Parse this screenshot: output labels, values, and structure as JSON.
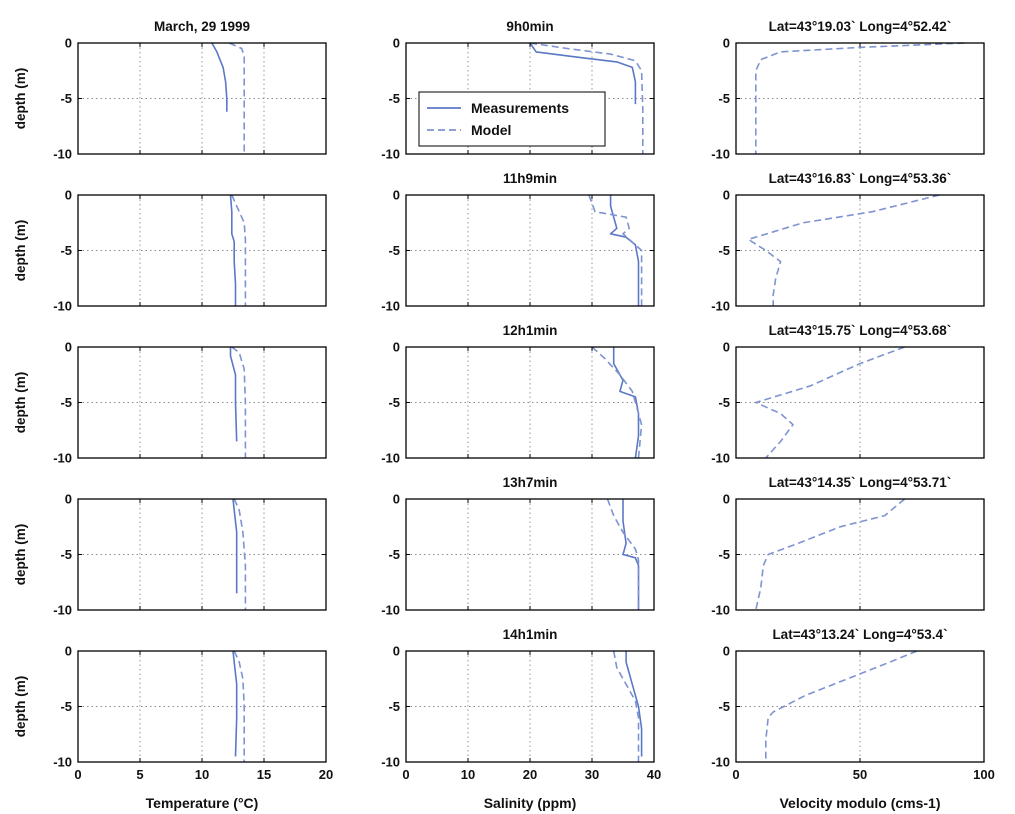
{
  "figure": {
    "ylabel": "depth (m)",
    "xlabels": [
      "Temperature (°C)",
      "Salinity (ppm)",
      "Velocity modulo (cms-1)"
    ],
    "legend": {
      "entries": [
        "Measurements",
        "Model"
      ],
      "placement": "inside first salinity panel"
    },
    "colors": {
      "measurements": "#5b78c6",
      "model": "#7e93d1",
      "frame": "#000000",
      "grid": "#8c8c8c"
    }
  },
  "chart_data": [
    {
      "type": "line",
      "panel": "temperature-row1",
      "title": "March, 29 1999",
      "xlabel": "",
      "ylabel": "depth (m)",
      "xlim": [
        0,
        20
      ],
      "ylim": [
        -10,
        0
      ],
      "grid": true,
      "x_ticks": [
        "0",
        "5",
        "10",
        "15",
        "20"
      ],
      "y_ticks": [
        "0",
        "-5",
        "-10"
      ],
      "series": [
        {
          "name": "Measurements",
          "style": "solid",
          "x": [
            10.8,
            11.2,
            11.7,
            11.9,
            12.0,
            12.0
          ],
          "y": [
            0,
            -0.8,
            -2.2,
            -3.5,
            -5,
            -6.2
          ]
        },
        {
          "name": "Model",
          "style": "dashed",
          "x": [
            12.2,
            13.2,
            13.4,
            13.4,
            13.4,
            13.4
          ],
          "y": [
            0,
            -0.5,
            -1.2,
            -4,
            -7,
            -10
          ]
        }
      ]
    },
    {
      "type": "line",
      "panel": "salinity-row1",
      "title": "9h0min",
      "xlabel": "",
      "ylabel": "",
      "xlim": [
        0,
        40
      ],
      "ylim": [
        -10,
        0
      ],
      "grid": true,
      "x_ticks": [
        "0",
        "10",
        "20",
        "30",
        "40"
      ],
      "y_ticks": [
        "0",
        "-5",
        "-10"
      ],
      "series": [
        {
          "name": "Measurements",
          "style": "solid",
          "x": [
            20.0,
            21.0,
            28.0,
            34.0,
            36.5,
            37.0,
            37.0
          ],
          "y": [
            0,
            -0.8,
            -1.3,
            -1.7,
            -2.2,
            -3.5,
            -5.5
          ]
        },
        {
          "name": "Model",
          "style": "dashed",
          "x": [
            20.0,
            26.0,
            33.0,
            37.0,
            38.0,
            38.2,
            38.2
          ],
          "y": [
            0,
            -0.5,
            -1.0,
            -1.6,
            -2.5,
            -6,
            -10
          ]
        }
      ]
    },
    {
      "type": "line",
      "panel": "velocity-row1",
      "title": "Lat=43°19.03` Long=4°52.42`",
      "xlabel": "",
      "ylabel": "",
      "xlim": [
        0,
        100
      ],
      "ylim": [
        -10,
        0
      ],
      "grid": true,
      "x_ticks": [
        "0",
        "50",
        "100"
      ],
      "y_ticks": [
        "0",
        "-5",
        "-10"
      ],
      "series": [
        {
          "name": "Model",
          "style": "dashed",
          "x": [
            92,
            50,
            18,
            10,
            8,
            8,
            8,
            8
          ],
          "y": [
            0,
            -0.4,
            -0.8,
            -1.5,
            -2.5,
            -5,
            -8,
            -10
          ]
        }
      ]
    },
    {
      "type": "line",
      "panel": "temperature-row2",
      "title": "",
      "xlabel": "",
      "ylabel": "depth (m)",
      "xlim": [
        0,
        20
      ],
      "ylim": [
        -10,
        0
      ],
      "grid": true,
      "x_ticks": [
        "0",
        "5",
        "10",
        "15",
        "20"
      ],
      "y_ticks": [
        "0",
        "-5",
        "-10"
      ],
      "series": [
        {
          "name": "Measurements",
          "style": "solid",
          "x": [
            12.3,
            12.4,
            12.4,
            12.6,
            12.6,
            12.7,
            12.7
          ],
          "y": [
            0,
            -1.5,
            -3.5,
            -4.2,
            -6,
            -8,
            -10
          ]
        },
        {
          "name": "Model",
          "style": "dashed",
          "x": [
            12.4,
            12.8,
            13.4,
            13.5,
            13.5,
            13.5
          ],
          "y": [
            0,
            -1.0,
            -2.5,
            -4,
            -7,
            -10
          ]
        }
      ]
    },
    {
      "type": "line",
      "panel": "salinity-row2",
      "title": "11h9min",
      "xlabel": "",
      "ylabel": "",
      "xlim": [
        0,
        40
      ],
      "ylim": [
        -10,
        0
      ],
      "grid": true,
      "x_ticks": [
        "0",
        "10",
        "20",
        "30",
        "40"
      ],
      "y_ticks": [
        "0",
        "-5",
        "-10"
      ],
      "series": [
        {
          "name": "Measurements",
          "style": "solid",
          "x": [
            33.0,
            33.0,
            33.5,
            34.0,
            33.0,
            35.5,
            37.0,
            37.5,
            37.5
          ],
          "y": [
            0,
            -1.0,
            -2.0,
            -3.0,
            -3.5,
            -3.8,
            -4.5,
            -6,
            -10
          ]
        },
        {
          "name": "Model",
          "style": "dashed",
          "x": [
            29.5,
            30.5,
            35.5,
            36.0,
            35.0,
            37.0,
            38.0,
            38.0
          ],
          "y": [
            0,
            -1.5,
            -2.0,
            -3.0,
            -3.5,
            -4.5,
            -5,
            -10
          ]
        }
      ]
    },
    {
      "type": "line",
      "panel": "velocity-row2",
      "title": "Lat=43°16.83` Long=4°53.36`",
      "xlabel": "",
      "ylabel": "",
      "xlim": [
        0,
        100
      ],
      "ylim": [
        -10,
        0
      ],
      "grid": true,
      "x_ticks": [
        "0",
        "50",
        "100"
      ],
      "y_ticks": [
        "0",
        "-5",
        "-10"
      ],
      "series": [
        {
          "name": "Model",
          "style": "dashed",
          "x": [
            82,
            55,
            27,
            5,
            12,
            18,
            16,
            15,
            15
          ],
          "y": [
            0,
            -1.5,
            -2.5,
            -4.0,
            -5.0,
            -6.0,
            -7.5,
            -9,
            -10
          ]
        }
      ]
    },
    {
      "type": "line",
      "panel": "temperature-row3",
      "title": "",
      "xlabel": "",
      "ylabel": "depth (m)",
      "xlim": [
        0,
        20
      ],
      "ylim": [
        -10,
        0
      ],
      "grid": true,
      "x_ticks": [
        "0",
        "5",
        "10",
        "15",
        "20"
      ],
      "y_ticks": [
        "0",
        "-5",
        "-10"
      ],
      "series": [
        {
          "name": "Measurements",
          "style": "solid",
          "x": [
            12.3,
            12.3,
            12.7,
            12.7,
            12.8
          ],
          "y": [
            0,
            -0.8,
            -2.5,
            -5,
            -8.5
          ]
        },
        {
          "name": "Model",
          "style": "dashed",
          "x": [
            12.4,
            13.0,
            13.4,
            13.5,
            13.5
          ],
          "y": [
            0,
            -0.5,
            -2.0,
            -5,
            -10
          ]
        }
      ]
    },
    {
      "type": "line",
      "panel": "salinity-row3",
      "title": "12h1min",
      "xlabel": "",
      "ylabel": "",
      "xlim": [
        0,
        40
      ],
      "ylim": [
        -10,
        0
      ],
      "grid": true,
      "x_ticks": [
        "0",
        "10",
        "20",
        "30",
        "40"
      ],
      "y_ticks": [
        "0",
        "-5",
        "-10"
      ],
      "series": [
        {
          "name": "Measurements",
          "style": "solid",
          "x": [
            33.5,
            33.5,
            35.0,
            34.5,
            37.0,
            37.5,
            37.5,
            37.0
          ],
          "y": [
            0,
            -1.5,
            -3.0,
            -4.0,
            -4.5,
            -6,
            -8,
            -10
          ]
        },
        {
          "name": "Model",
          "style": "dashed",
          "x": [
            30.0,
            32.0,
            34.5,
            36.5,
            37.0,
            38.0,
            37.5
          ],
          "y": [
            0,
            -1.0,
            -2.5,
            -4.0,
            -5.0,
            -7,
            -10
          ]
        }
      ]
    },
    {
      "type": "line",
      "panel": "velocity-row3",
      "title": "Lat=43°15.75` Long=4°53.68`",
      "xlabel": "",
      "ylabel": "",
      "xlim": [
        0,
        100
      ],
      "ylim": [
        -10,
        0
      ],
      "grid": true,
      "x_ticks": [
        "0",
        "50",
        "100"
      ],
      "y_ticks": [
        "0",
        "-5",
        "-10"
      ],
      "series": [
        {
          "name": "Model",
          "style": "dashed",
          "x": [
            68,
            50,
            30,
            8,
            18,
            23,
            18,
            12
          ],
          "y": [
            0,
            -1.5,
            -3.5,
            -5.0,
            -6.0,
            -7.0,
            -8.5,
            -10
          ]
        }
      ]
    },
    {
      "type": "line",
      "panel": "temperature-row4",
      "title": "",
      "xlabel": "",
      "ylabel": "depth (m)",
      "xlim": [
        0,
        20
      ],
      "ylim": [
        -10,
        0
      ],
      "grid": true,
      "x_ticks": [
        "0",
        "5",
        "10",
        "15",
        "20"
      ],
      "y_ticks": [
        "0",
        "-5",
        "-10"
      ],
      "series": [
        {
          "name": "Measurements",
          "style": "solid",
          "x": [
            12.5,
            12.6,
            12.8,
            12.8,
            12.8
          ],
          "y": [
            0,
            -1.0,
            -3.0,
            -6,
            -8.5
          ]
        },
        {
          "name": "Model",
          "style": "dashed",
          "x": [
            12.6,
            13.0,
            13.3,
            13.5,
            13.5
          ],
          "y": [
            0,
            -1.0,
            -3.0,
            -6,
            -10
          ]
        }
      ]
    },
    {
      "type": "line",
      "panel": "salinity-row4",
      "title": "13h7min",
      "xlabel": "",
      "ylabel": "",
      "xlim": [
        0,
        40
      ],
      "ylim": [
        -10,
        0
      ],
      "grid": true,
      "x_ticks": [
        "0",
        "10",
        "20",
        "30",
        "40"
      ],
      "y_ticks": [
        "0",
        "-5",
        "-10"
      ],
      "series": [
        {
          "name": "Measurements",
          "style": "solid",
          "x": [
            35.0,
            35.0,
            35.5,
            35.0,
            37.0,
            37.5,
            37.5,
            37.5
          ],
          "y": [
            0,
            -2.0,
            -4.0,
            -5.0,
            -5.3,
            -6,
            -8,
            -10
          ]
        },
        {
          "name": "Model",
          "style": "dashed",
          "x": [
            32.5,
            33.5,
            35.0,
            37.0,
            37.5,
            37.5,
            37.5
          ],
          "y": [
            0,
            -1.5,
            -3.0,
            -4.5,
            -5.5,
            -7.5,
            -10
          ]
        }
      ]
    },
    {
      "type": "line",
      "panel": "velocity-row4",
      "title": "Lat=43°14.35` Long=4°53.71`",
      "xlabel": "",
      "ylabel": "",
      "xlim": [
        0,
        100
      ],
      "ylim": [
        -10,
        0
      ],
      "grid": true,
      "x_ticks": [
        "0",
        "50",
        "100"
      ],
      "y_ticks": [
        "0",
        "-5",
        "-10"
      ],
      "series": [
        {
          "name": "Model",
          "style": "dashed",
          "x": [
            68,
            60,
            42,
            25,
            13,
            11,
            10,
            8
          ],
          "y": [
            0,
            -1.5,
            -2.5,
            -4.0,
            -5.0,
            -6.0,
            -8,
            -10
          ]
        }
      ]
    },
    {
      "type": "line",
      "panel": "temperature-row5",
      "title": "",
      "xlabel": "Temperature (°C)",
      "ylabel": "depth (m)",
      "xlim": [
        0,
        20
      ],
      "ylim": [
        -10,
        0
      ],
      "grid": true,
      "x_ticks": [
        "0",
        "5",
        "10",
        "15",
        "20"
      ],
      "y_ticks": [
        "0",
        "-5",
        "-10"
      ],
      "series": [
        {
          "name": "Measurements",
          "style": "solid",
          "x": [
            12.5,
            12.6,
            12.8,
            12.8,
            12.7
          ],
          "y": [
            0,
            -1.0,
            -3.0,
            -6,
            -9.5
          ]
        },
        {
          "name": "Model",
          "style": "dashed",
          "x": [
            12.6,
            13.0,
            13.3,
            13.4,
            13.4
          ],
          "y": [
            0,
            -1.0,
            -2.5,
            -5,
            -10
          ]
        }
      ]
    },
    {
      "type": "line",
      "panel": "salinity-row5",
      "title": "14h1min",
      "xlabel": "Salinity (ppm)",
      "ylabel": "",
      "xlim": [
        0,
        40
      ],
      "ylim": [
        -10,
        0
      ],
      "grid": true,
      "x_ticks": [
        "0",
        "10",
        "20",
        "30",
        "40"
      ],
      "y_ticks": [
        "0",
        "-5",
        "-10"
      ],
      "series": [
        {
          "name": "Measurements",
          "style": "solid",
          "x": [
            35.5,
            35.5,
            36.5,
            37.5,
            38.0,
            38.0
          ],
          "y": [
            0,
            -1.0,
            -3.0,
            -5.0,
            -7,
            -9.5
          ]
        },
        {
          "name": "Model",
          "style": "dashed",
          "x": [
            33.5,
            34.0,
            35.5,
            37.0,
            37.5,
            37.5
          ],
          "y": [
            0,
            -1.5,
            -3.0,
            -4.5,
            -6,
            -10
          ]
        }
      ]
    },
    {
      "type": "line",
      "panel": "velocity-row5",
      "title": "Lat=43°13.24` Long=4°53.4`",
      "xlabel": "Velocity modulo (cms-1)",
      "ylabel": "",
      "xlim": [
        0,
        100
      ],
      "ylim": [
        -10,
        0
      ],
      "grid": true,
      "x_ticks": [
        "0",
        "50",
        "100"
      ],
      "y_ticks": [
        "0",
        "-5",
        "-10"
      ],
      "series": [
        {
          "name": "Model",
          "style": "dashed",
          "x": [
            73,
            62,
            45,
            28,
            15,
            13,
            12,
            12
          ],
          "y": [
            0,
            -1.0,
            -2.5,
            -4.0,
            -5.5,
            -6.0,
            -8,
            -10
          ]
        }
      ]
    }
  ]
}
